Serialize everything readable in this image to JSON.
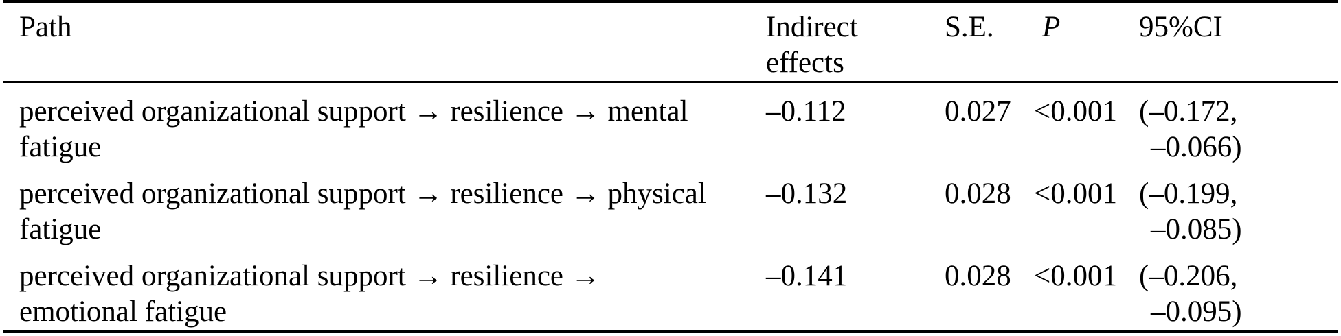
{
  "table": {
    "columns": {
      "path": "Path",
      "indirect_lines": [
        "Indirect",
        "effects"
      ],
      "se": "S.E.",
      "p": "P",
      "ci": "95%CI"
    },
    "rows": [
      {
        "path_lines": [
          "perceived organizational support → resilience → mental",
          "fatigue"
        ],
        "indirect_effect": "–0.112",
        "se": "0.027",
        "p": "<0.001",
        "ci_lines": [
          "(–0.172,",
          "–0.066)"
        ]
      },
      {
        "path_lines": [
          "perceived organizational support → resilience → physical",
          "fatigue"
        ],
        "indirect_effect": "–0.132",
        "se": "0.028",
        "p": "<0.001",
        "ci_lines": [
          "(–0.199,",
          "–0.085)"
        ]
      },
      {
        "path_lines": [
          "perceived organizational support → resilience →",
          "emotional fatigue"
        ],
        "indirect_effect": "–0.141",
        "se": "0.028",
        "p": "<0.001",
        "ci_lines": [
          "(–0.206,",
          "–0.095)"
        ]
      }
    ],
    "colors": {
      "text": "#000000",
      "background": "#ffffff",
      "rule": "#000000"
    }
  }
}
